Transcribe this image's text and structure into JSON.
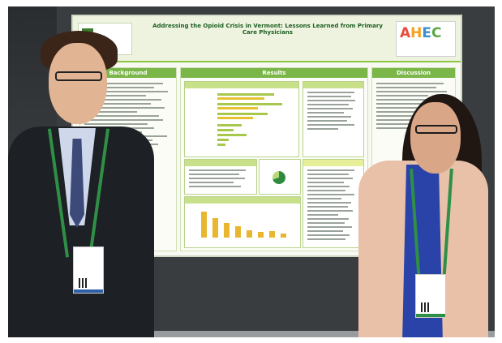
{
  "poster": {
    "title": "Addressing the Opioid Crisis in Vermont: Lessons Learned from Primary Care Physicians",
    "logo_right": "AHEC",
    "sections": {
      "background": "Background",
      "results": "Results",
      "discussion": "Discussion"
    }
  },
  "badges": {
    "left": "",
    "right": ""
  },
  "colors": {
    "poster_green": "#7ab648",
    "title_green": "#1b5e20",
    "ahec_a": "#e84c3d",
    "ahec_h": "#f4a21d",
    "ahec_e": "#3b8fd1",
    "ahec_c": "#5aa843",
    "lanyard": "#2f8f46"
  }
}
